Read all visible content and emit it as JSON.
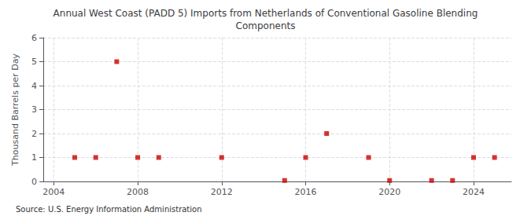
{
  "chart_data": {
    "type": "scatter",
    "title": "Annual West Coast (PADD 5) Imports from Netherlands of Conventional Gasoline Blending\nComponents",
    "y_label": "Thousand Barrels per Day",
    "annotations": [
      "Source: U.S. Energy Information Administration"
    ],
    "x": [
      2005,
      2006,
      2007,
      2008,
      2009,
      2012,
      2015,
      2016,
      2017,
      2019,
      2020,
      2022,
      2023,
      2024,
      2025
    ],
    "values": [
      1,
      1,
      5,
      1,
      1,
      1,
      0.04,
      1,
      2,
      1,
      0.04,
      0.04,
      0.04,
      1,
      1
    ],
    "color": "#cc0000",
    "marker": "square",
    "xlim": [
      2003.5,
      2025.8
    ],
    "ylim": [
      0,
      6
    ],
    "xticks": [
      2004,
      2008,
      2012,
      2016,
      2020,
      2024
    ],
    "yticks": [
      0,
      1,
      2,
      3,
      4,
      5,
      6
    ],
    "grid": true
  }
}
